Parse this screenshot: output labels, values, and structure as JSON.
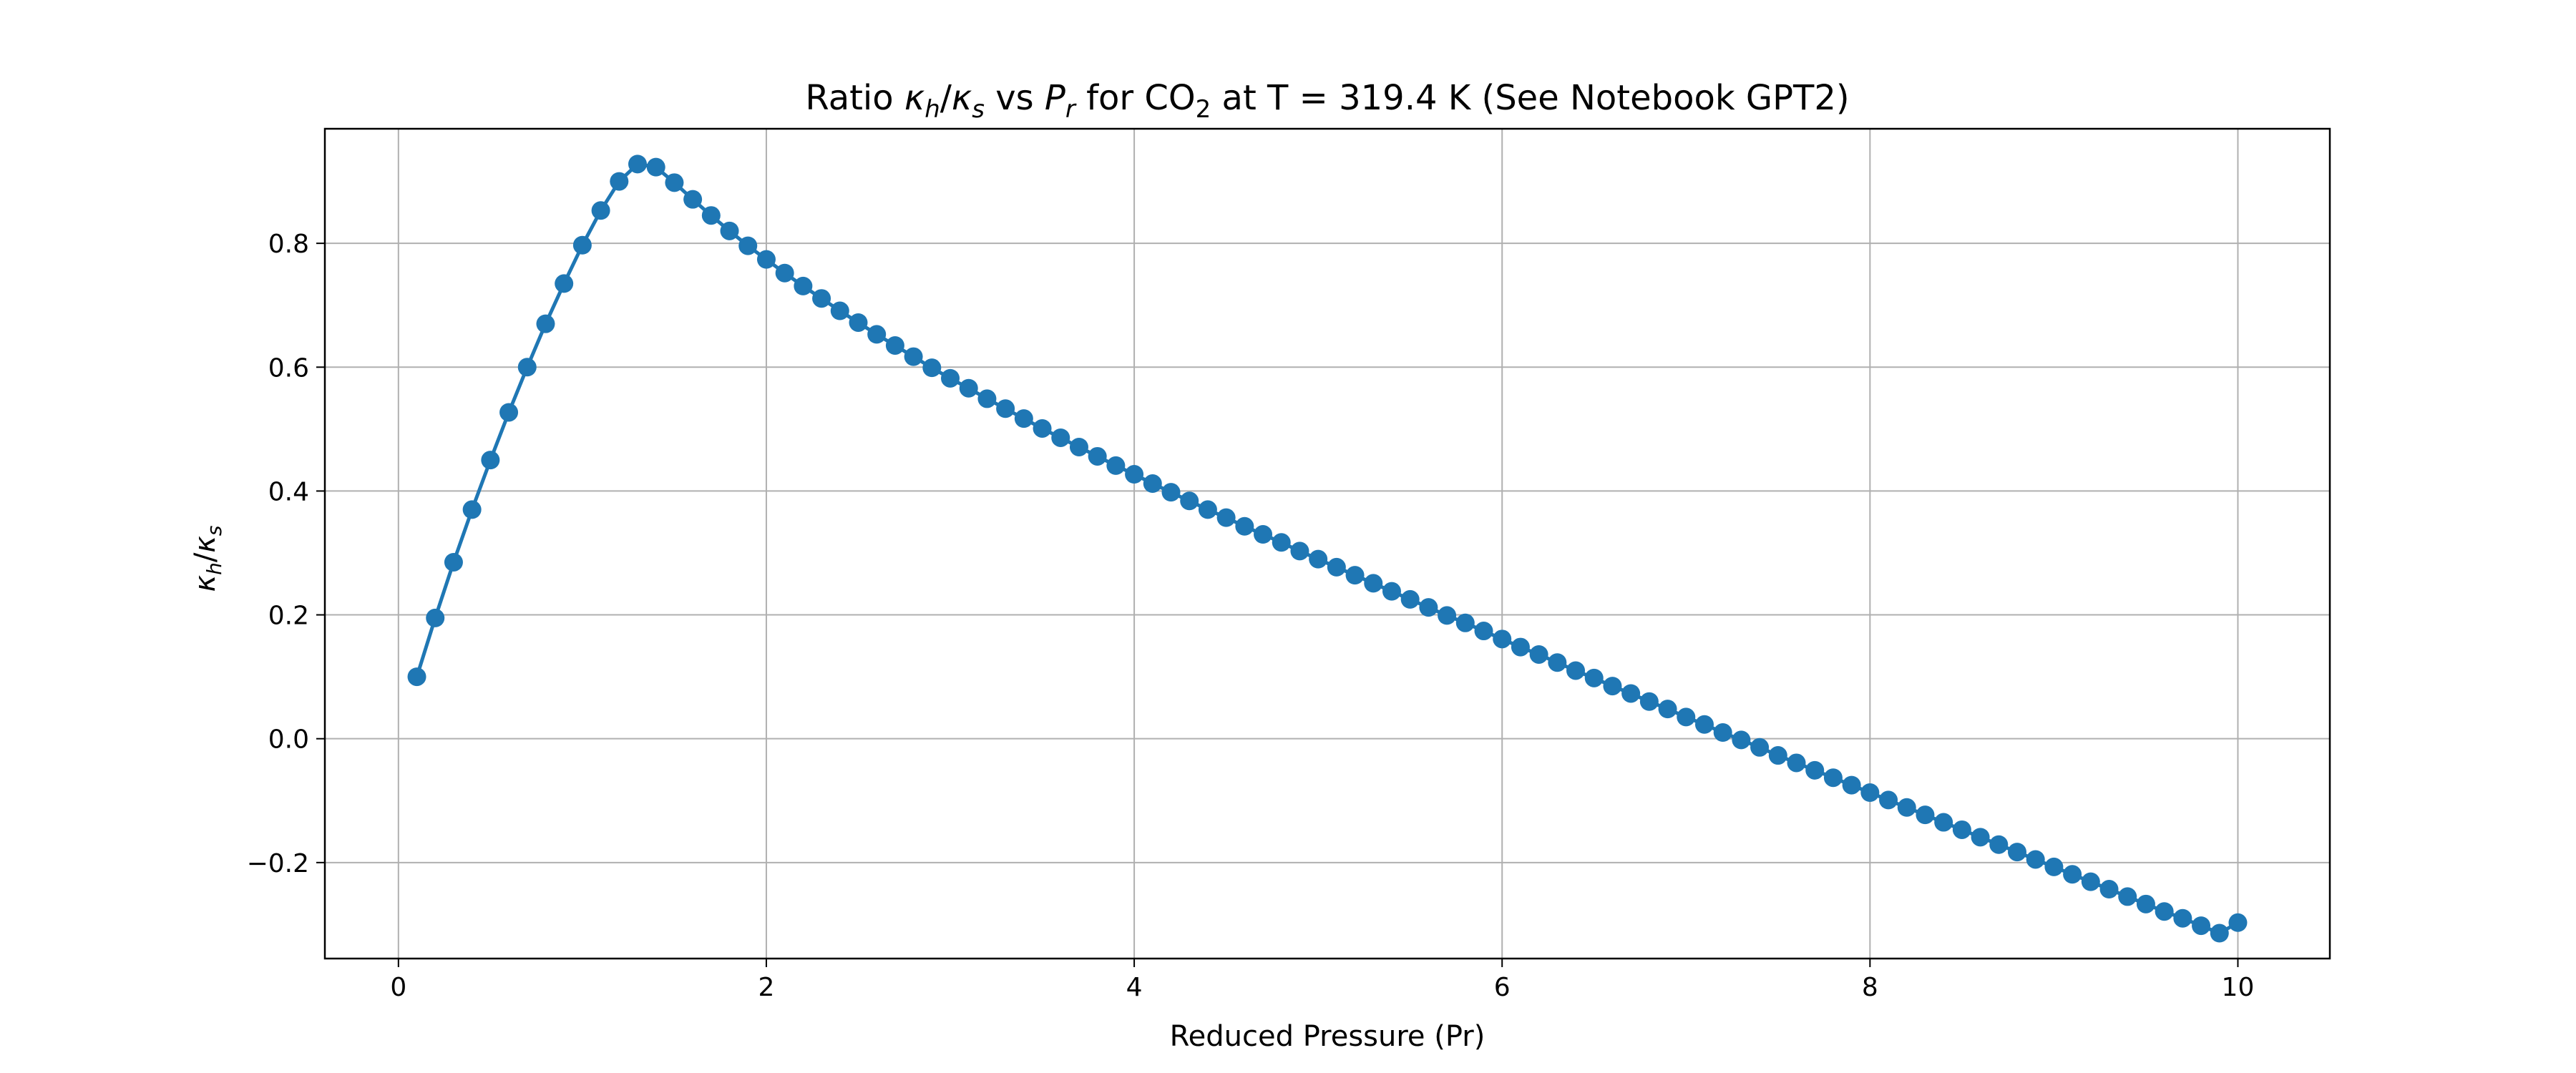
{
  "chart_data": {
    "type": "line",
    "title_parts": {
      "prefix": "Ratio ",
      "kappa": "κ",
      "sub_h": "h",
      "slash": "/",
      "sub_s": "s",
      "vs": " vs ",
      "p": "P",
      "sub_r": "r",
      "for": " for CO",
      "sub_2": "2",
      "suffix": " at T = 319.4 K (See Notebook GPT2)"
    },
    "xlabel": "Reduced Pressure (Pr)",
    "ylabel_parts": {
      "kappa": "κ",
      "sub_h": "h",
      "slash": "/",
      "sub_s": "s"
    },
    "xlim": [
      -0.4,
      10.5
    ],
    "ylim": [
      -0.355,
      0.985
    ],
    "xticks": [
      0,
      2,
      4,
      6,
      8,
      10
    ],
    "xtick_labels": [
      "0",
      "2",
      "4",
      "6",
      "8",
      "10"
    ],
    "yticks": [
      -0.2,
      0.0,
      0.2,
      0.4,
      0.6,
      0.8
    ],
    "ytick_labels": [
      "−0.2",
      "0.0",
      "0.2",
      "0.4",
      "0.6",
      "0.8"
    ],
    "grid": true,
    "color": "#1f77b4",
    "grid_color": "#b0b0b0",
    "series": [
      {
        "x": [
          0.1,
          0.2,
          0.3,
          0.4,
          0.5,
          0.6,
          0.7,
          0.8,
          0.9,
          1.0,
          1.1,
          1.2,
          1.3,
          1.4,
          1.5,
          1.6,
          1.7,
          1.8,
          1.9,
          2.0,
          2.1,
          2.2,
          2.3,
          2.4,
          2.5,
          2.6,
          2.7,
          2.8,
          2.9,
          3.0,
          3.1,
          3.2,
          3.3,
          3.4,
          3.5,
          3.6,
          3.7,
          3.8,
          3.9,
          4.0,
          4.1,
          4.2,
          4.3,
          4.4,
          4.5,
          4.6,
          4.7,
          4.8,
          4.9,
          5.0,
          5.1,
          5.2,
          5.3,
          5.4,
          5.5,
          5.6,
          5.7,
          5.8,
          5.9,
          6.0,
          6.1,
          6.2,
          6.3,
          6.4,
          6.5,
          6.6,
          6.7,
          6.8,
          6.9,
          7.0,
          7.1,
          7.2,
          7.3,
          7.4,
          7.5,
          7.6,
          7.7,
          7.8,
          7.9,
          8.0,
          8.1,
          8.2,
          8.3,
          8.4,
          8.5,
          8.6,
          8.7,
          8.8,
          8.9,
          9.0,
          9.1,
          9.2,
          9.3,
          9.4,
          9.5,
          9.6,
          9.7,
          9.8,
          9.9,
          10.0
        ],
        "y": [
          0.1,
          0.195,
          0.285,
          0.37,
          0.45,
          0.527,
          0.6,
          0.67,
          0.735,
          0.797,
          0.853,
          0.9,
          0.928,
          0.923,
          0.898,
          0.871,
          0.845,
          0.82,
          0.796,
          0.774,
          0.752,
          0.731,
          0.711,
          0.691,
          0.672,
          0.653,
          0.635,
          0.617,
          0.599,
          0.582,
          0.566,
          0.549,
          0.533,
          0.517,
          0.501,
          0.486,
          0.471,
          0.456,
          0.441,
          0.427,
          0.412,
          0.398,
          0.384,
          0.37,
          0.357,
          0.343,
          0.33,
          0.317,
          0.303,
          0.29,
          0.277,
          0.264,
          0.251,
          0.238,
          0.225,
          0.212,
          0.199,
          0.187,
          0.174,
          0.161,
          0.148,
          0.136,
          0.123,
          0.11,
          0.098,
          0.085,
          0.073,
          0.06,
          0.048,
          0.035,
          0.023,
          0.01,
          -0.002,
          -0.014,
          -0.027,
          -0.039,
          -0.051,
          -0.063,
          -0.075,
          -0.087,
          -0.099,
          -0.111,
          -0.123,
          -0.135,
          -0.147,
          -0.159,
          -0.171,
          -0.183,
          -0.195,
          -0.207,
          -0.219,
          -0.231,
          -0.243,
          -0.255,
          -0.267,
          -0.279,
          -0.29,
          -0.302,
          -0.314,
          -0.297
        ]
      }
    ]
  }
}
